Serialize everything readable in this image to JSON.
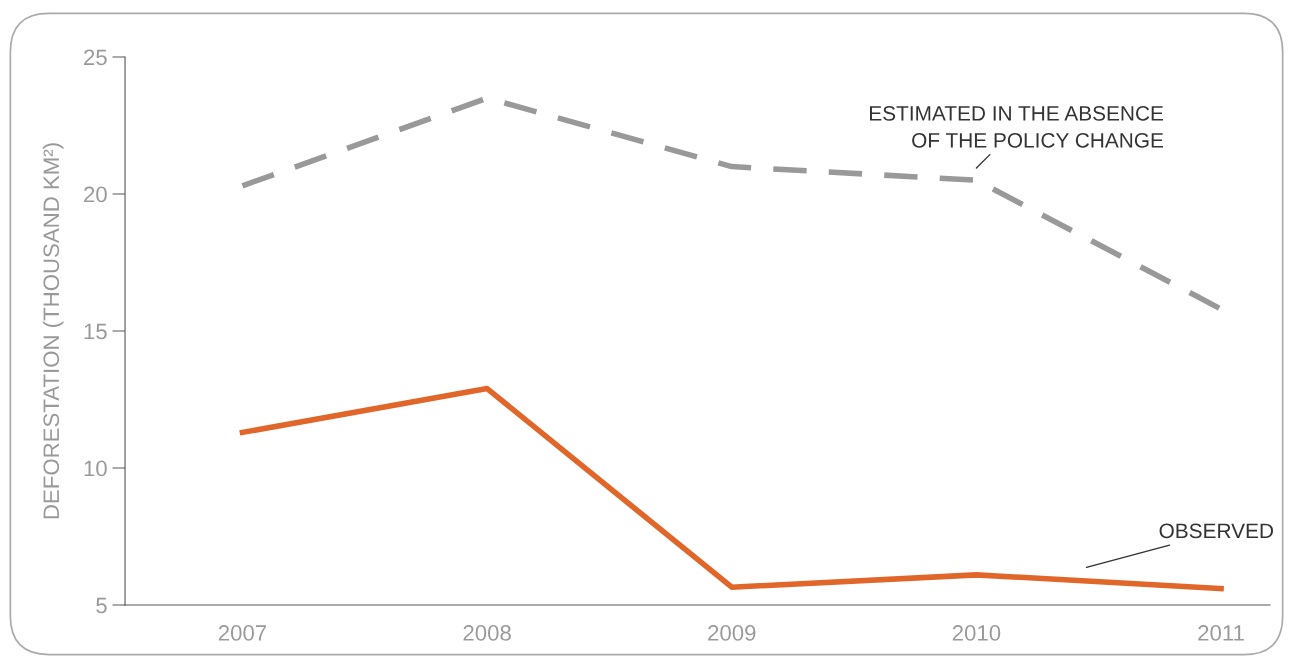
{
  "chart_data": {
    "type": "line",
    "ylabel": "DEFORESTATION (THOUSAND KM²)",
    "categories": [
      "2007",
      "2008",
      "2009",
      "2010",
      "2011"
    ],
    "series": [
      {
        "name": "ESTIMATED IN THE ABSENCE\nOF THE POLICY CHANGE",
        "color": "#999999",
        "line_style": "dashed",
        "values": [
          20.3,
          23.5,
          21.0,
          20.5,
          15.8
        ]
      },
      {
        "name": "OBSERVED",
        "color": "#e0662a",
        "line_style": "solid",
        "values": [
          11.3,
          12.9,
          5.65,
          6.1,
          5.6
        ]
      }
    ],
    "ylim": [
      5,
      25
    ],
    "yticks": [
      5,
      10,
      15,
      20,
      25
    ],
    "grid": false,
    "legend": false,
    "marker": "none"
  }
}
